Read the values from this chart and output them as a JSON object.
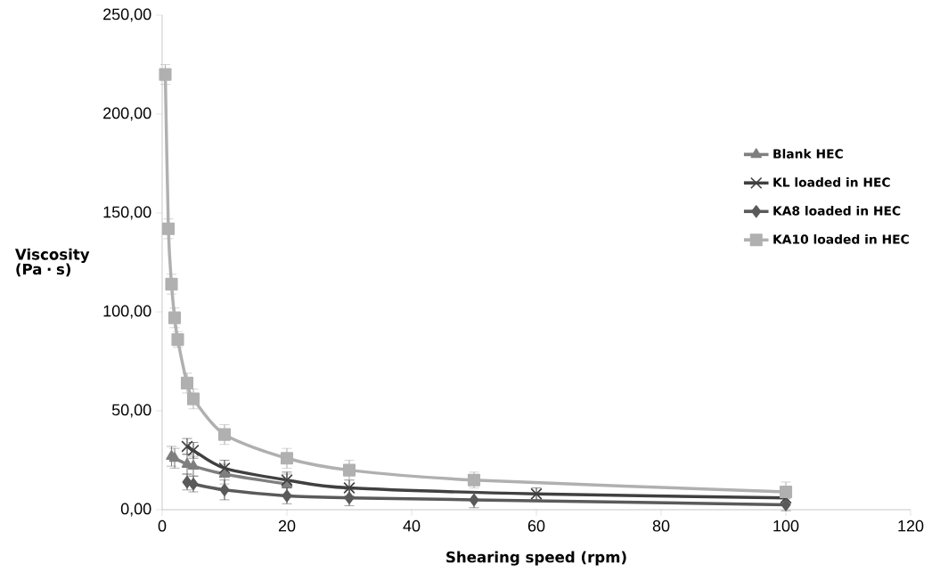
{
  "chart_data": {
    "type": "line",
    "xlabel": "Shearing speed (rpm)",
    "ylabel": "Viscosity (Pa · s)",
    "xlim": [
      0,
      120
    ],
    "xticks": [
      0,
      20,
      40,
      60,
      80,
      100,
      120
    ],
    "ylim": [
      0,
      250
    ],
    "yticks": [
      {
        "value": 0,
        "label": "0,00"
      },
      {
        "value": 50,
        "label": "50,00"
      },
      {
        "value": 100,
        "label": "100,00"
      },
      {
        "value": 150,
        "label": "150,00"
      },
      {
        "value": 200,
        "label": "200,00"
      },
      {
        "value": 250,
        "label": "250,00"
      }
    ],
    "grid": false,
    "legend": "right",
    "series": [
      {
        "name": "Blank HEC",
        "color": "#7f7f7f",
        "marker": "triangle",
        "x": [
          1.5,
          2,
          4,
          5,
          10,
          20
        ],
        "values": [
          27,
          26,
          23,
          22,
          18,
          13
        ],
        "errors": [
          5,
          5,
          5,
          5,
          5,
          5
        ]
      },
      {
        "name": "KL loaded in HEC",
        "color": "#404040",
        "marker": "cross",
        "x": [
          4,
          5,
          10,
          20,
          30,
          60,
          100
        ],
        "values": [
          32,
          30,
          21,
          15,
          11,
          8,
          6
        ],
        "errors": [
          4,
          4,
          4,
          4,
          4,
          3,
          3
        ]
      },
      {
        "name": "KA8 loaded in HEC",
        "color": "#5a5a5a",
        "marker": "diamond",
        "x": [
          4,
          5,
          10,
          20,
          30,
          50,
          100
        ],
        "values": [
          14,
          13,
          10,
          7,
          6,
          5,
          2.5
        ],
        "errors": [
          4,
          4,
          5,
          4,
          4,
          4,
          3
        ]
      },
      {
        "name": "KA10 loaded in HEC",
        "color": "#b0b0b0",
        "marker": "square",
        "x": [
          0.5,
          1,
          1.5,
          2,
          2.5,
          4,
          5,
          10,
          20,
          30,
          50,
          100
        ],
        "values": [
          220,
          142,
          114,
          97,
          86,
          64,
          56,
          38,
          26,
          20,
          15,
          9
        ],
        "errors": [
          5,
          5,
          5,
          5,
          4,
          5,
          5,
          5,
          5,
          5,
          4,
          5
        ]
      }
    ]
  }
}
